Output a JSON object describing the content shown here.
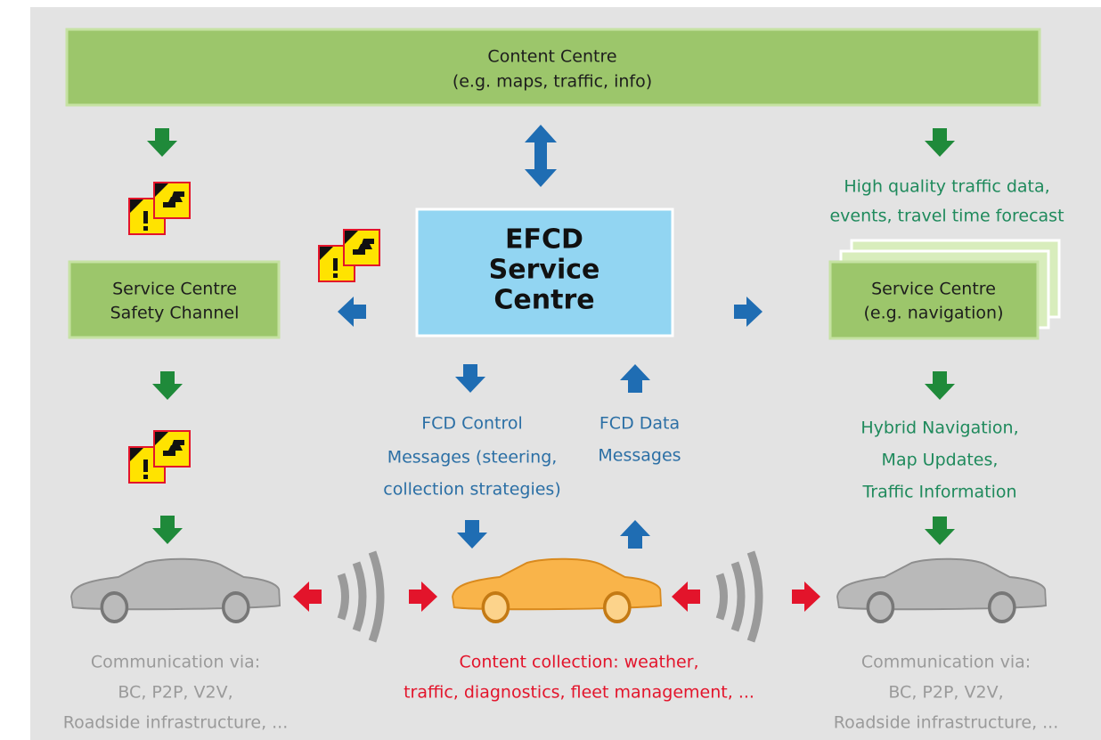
{
  "content_centre": {
    "lines": [
      "Content Centre",
      "(e.g. maps, traffic, info)"
    ]
  },
  "efcd_centre": {
    "lines": [
      "EFCD",
      "Service",
      "Centre"
    ]
  },
  "safety_centre": {
    "lines": [
      "Service Centre",
      "Safety Channel"
    ]
  },
  "navigation_centre": {
    "lines": [
      "Service Centre",
      "(e.g. navigation)"
    ]
  },
  "labels": {
    "traffic_data": [
      "High quality traffic data,",
      "events, travel time forecast"
    ],
    "control_messages": [
      "FCD Control",
      "Messages (steering,",
      "collection strategies)"
    ],
    "data_messages": [
      "FCD Data",
      "Messages"
    ],
    "navigation_services": [
      "Hybrid Navigation,",
      "Map Updates,",
      "Traffic Information"
    ],
    "left_communication": [
      "Communication via:",
      "BC, P2P, V2V,",
      "Roadside infrastructure, ..."
    ],
    "content_collection": [
      "Content collection: weather,",
      "traffic, diagnostics, fleet management, ..."
    ],
    "right_communication": [
      "Communication via:",
      "BC, P2P, V2V,",
      "Roadside infrastructure, ..."
    ]
  }
}
